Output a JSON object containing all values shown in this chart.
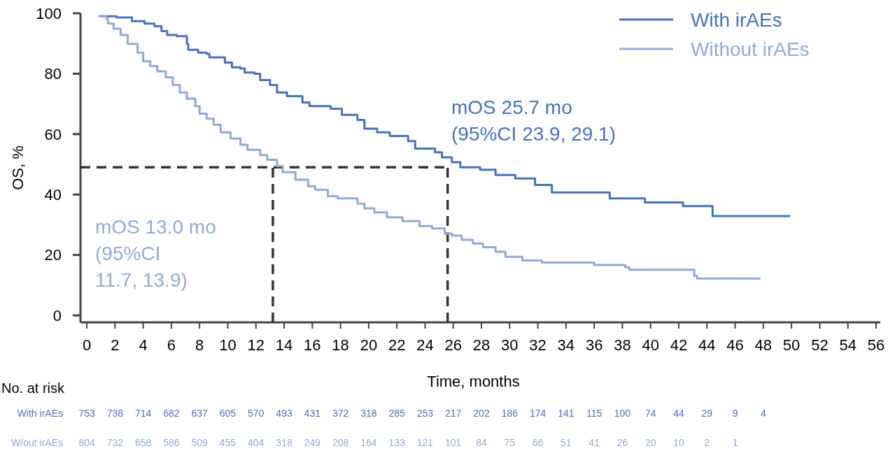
{
  "chart_data": {
    "type": "step",
    "xlabel": "Time, months",
    "ylabel": "OS, %",
    "xlim": [
      -0.45,
      56.3
    ],
    "ylim": [
      -2.3,
      100
    ],
    "xticks": [
      0,
      2,
      4,
      6,
      8,
      10,
      12,
      14,
      16,
      18,
      20,
      22,
      24,
      26,
      28,
      30,
      32,
      34,
      36,
      38,
      40,
      42,
      44,
      46,
      48,
      50,
      52,
      54,
      56
    ],
    "yticks": [
      0,
      20,
      40,
      60,
      80,
      100
    ],
    "legend": "top right",
    "grid": false,
    "series": [
      {
        "name": "With irAEs",
        "color": "#4472c4",
        "x": [
          0.85,
          2.1,
          3.2,
          4.1,
          4.8,
          5.3,
          5.7,
          6.4,
          7.1,
          7.2,
          7.9,
          8.5,
          8.7,
          9.8,
          10.3,
          10.9,
          11.2,
          11.9,
          12.3,
          13,
          13.5,
          14.2,
          15.3,
          15.8,
          17.3,
          18.1,
          19.2,
          19.7,
          20.6,
          21.5,
          22.8,
          23.3,
          24.7,
          25.2,
          25.9,
          26.5,
          27.9,
          29.0,
          30.4,
          31.8,
          33.0,
          37.1,
          39.6,
          42.3,
          44.4,
          49.9
        ],
        "values": [
          99,
          98.6,
          97.4,
          96.6,
          95.7,
          94.1,
          92.8,
          92.4,
          89.9,
          87.9,
          87,
          86.6,
          85.4,
          83.7,
          82.1,
          81.7,
          80.4,
          80,
          77.9,
          76.3,
          73.8,
          72.6,
          70.5,
          69.3,
          68.4,
          66.4,
          64.7,
          61.8,
          60.6,
          59.4,
          57.7,
          55.2,
          54,
          52.3,
          50.7,
          49,
          48.2,
          46.5,
          45.3,
          43.2,
          40.7,
          38.7,
          37.4,
          36.2,
          32.9,
          32.9
        ]
      },
      {
        "name": "Without irAEs",
        "color": "#8faadc",
        "x": [
          0.85,
          1.4,
          1.5,
          1.9,
          2.4,
          2.9,
          3.6,
          4.0,
          4.5,
          5.0,
          5.6,
          6.1,
          6.6,
          7.1,
          7.7,
          8.0,
          8.5,
          9.0,
          9.5,
          10.2,
          10.9,
          11.4,
          12.3,
          12.8,
          13.5,
          13.9,
          14.8,
          15.7,
          16.2,
          17.1,
          17.8,
          19.2,
          19.7,
          20.4,
          21.3,
          22.4,
          23.6,
          24.5,
          25.4,
          25.9,
          26.6,
          27.4,
          28.1,
          29.0,
          29.7,
          30.9,
          32.3,
          36.0,
          38.2,
          38.5,
          43.1,
          43.3,
          47.8
        ],
        "values": [
          99,
          98.2,
          96.6,
          94.9,
          92.8,
          89.9,
          87,
          84.1,
          82.5,
          80.8,
          78.8,
          76.3,
          73.8,
          71.7,
          69.3,
          66.8,
          65.1,
          63.1,
          60.6,
          58.5,
          56.5,
          54.8,
          53.1,
          51.5,
          49.4,
          47.4,
          44.9,
          42.8,
          41.6,
          39.5,
          38.7,
          37,
          35.4,
          34.1,
          32.5,
          31.2,
          29.6,
          28.8,
          27.1,
          26.4,
          25,
          23.8,
          22.6,
          21.1,
          19.4,
          18.2,
          17.5,
          16.7,
          15.9,
          15.1,
          13.1,
          12.2,
          12.2
        ]
      }
    ],
    "ref_lines": [
      {
        "axis": "y",
        "value": 49,
        "color": "#333333",
        "line_style": "dashed"
      },
      {
        "axis": "x",
        "value": 13.2,
        "color": "#333333",
        "line_style": "dashed"
      },
      {
        "axis": "x",
        "value": 25.6,
        "color": "#333333",
        "line_style": "dashed"
      }
    ],
    "annotations": [
      "mOS 25.7 mo\n(95%CI 23.9, 29.1)",
      "mOS 13.0 mo\n(95%CI\n11.7, 13.9)",
      "No. at risk",
      "With irAEs",
      "753 738 714 682 637 605 570 493 431 372 318 285 253 217 202 186 174 141 115 100 74 44 29 9 4",
      "W/out irAEs",
      "804 732 658 586 509 455 404 318 249 208 164 133 121 101 84 75 66 51 41 26 20 10 2 1"
    ]
  }
}
